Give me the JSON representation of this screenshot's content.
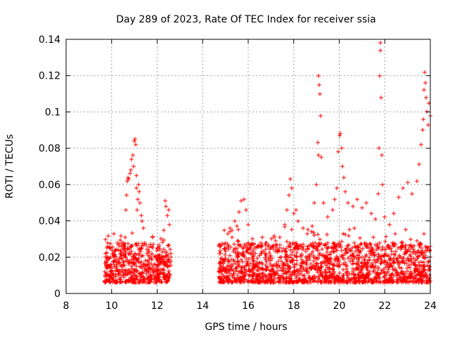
{
  "chart_data": {
    "type": "scatter",
    "title": "Day 289 of 2023, Rate Of TEC Index for receiver ssia",
    "xlabel": "GPS time / hours",
    "ylabel": "ROTI / TECUs",
    "xlim": [
      8,
      24
    ],
    "ylim": [
      0,
      0.14
    ],
    "x_ticks": [
      "8",
      "10",
      "12",
      "14",
      "16",
      "18",
      "20",
      "22",
      "24"
    ],
    "y_ticks": [
      "0",
      "0.02",
      "0.04",
      "0.06",
      "0.08",
      "0.1",
      "0.12",
      "0.14"
    ],
    "grid": true,
    "marker": "+",
    "marker_color": "#ff0000",
    "series": [
      {
        "name": "ROTI",
        "points": [
          [
            9.7,
            0.012
          ],
          [
            9.75,
            0.018
          ],
          [
            9.8,
            0.025
          ],
          [
            9.85,
            0.015
          ],
          [
            9.9,
            0.01
          ],
          [
            9.95,
            0.02
          ],
          [
            10.0,
            0.014
          ],
          [
            10.05,
            0.022
          ],
          [
            10.1,
            0.016
          ],
          [
            10.15,
            0.011
          ],
          [
            10.2,
            0.019
          ],
          [
            10.25,
            0.013
          ],
          [
            10.3,
            0.024
          ],
          [
            10.35,
            0.017
          ],
          [
            10.4,
            0.012
          ],
          [
            10.45,
            0.021
          ],
          [
            10.5,
            0.015
          ],
          [
            10.55,
            0.026
          ],
          [
            10.6,
            0.031
          ],
          [
            10.62,
            0.046
          ],
          [
            10.65,
            0.054
          ],
          [
            10.68,
            0.062
          ],
          [
            10.72,
            0.064
          ],
          [
            10.76,
            0.063
          ],
          [
            10.8,
            0.066
          ],
          [
            10.84,
            0.068
          ],
          [
            10.88,
            0.074
          ],
          [
            10.92,
            0.076
          ],
          [
            10.96,
            0.07
          ],
          [
            11.0,
            0.084
          ],
          [
            11.02,
            0.085
          ],
          [
            11.05,
            0.082
          ],
          [
            11.08,
            0.065
          ],
          [
            11.1,
            0.058
          ],
          [
            11.12,
            0.046
          ],
          [
            11.15,
            0.052
          ],
          [
            11.18,
            0.06
          ],
          [
            11.2,
            0.056
          ],
          [
            11.25,
            0.05
          ],
          [
            11.3,
            0.043
          ],
          [
            11.35,
            0.04
          ],
          [
            11.4,
            0.036
          ],
          [
            11.45,
            0.028
          ],
          [
            11.5,
            0.018
          ],
          [
            11.6,
            0.022
          ],
          [
            11.7,
            0.027
          ],
          [
            11.8,
            0.031
          ],
          [
            11.9,
            0.02
          ],
          [
            12.0,
            0.016
          ],
          [
            12.1,
            0.024
          ],
          [
            12.2,
            0.019
          ],
          [
            12.3,
            0.035
          ],
          [
            12.35,
            0.051
          ],
          [
            12.4,
            0.048
          ],
          [
            12.45,
            0.043
          ],
          [
            12.5,
            0.046
          ],
          [
            12.55,
            0.038
          ],
          [
            12.6,
            0.022
          ],
          [
            14.7,
            0.012
          ],
          [
            14.8,
            0.022
          ],
          [
            14.9,
            0.018
          ],
          [
            15.0,
            0.028
          ],
          [
            15.1,
            0.033
          ],
          [
            15.2,
            0.036
          ],
          [
            15.3,
            0.031
          ],
          [
            15.4,
            0.04
          ],
          [
            15.5,
            0.037
          ],
          [
            15.6,
            0.045
          ],
          [
            15.7,
            0.051
          ],
          [
            15.8,
            0.052
          ],
          [
            15.9,
            0.046
          ],
          [
            16.0,
            0.038
          ],
          [
            16.2,
            0.03
          ],
          [
            16.4,
            0.026
          ],
          [
            16.6,
            0.022
          ],
          [
            16.8,
            0.028
          ],
          [
            17.0,
            0.025
          ],
          [
            17.2,
            0.029
          ],
          [
            17.4,
            0.031
          ],
          [
            17.6,
            0.038
          ],
          [
            17.7,
            0.046
          ],
          [
            17.8,
            0.054
          ],
          [
            17.85,
            0.063
          ],
          [
            17.9,
            0.058
          ],
          [
            18.0,
            0.044
          ],
          [
            18.1,
            0.046
          ],
          [
            18.2,
            0.04
          ],
          [
            18.4,
            0.036
          ],
          [
            18.6,
            0.033
          ],
          [
            18.8,
            0.037
          ],
          [
            18.9,
            0.05
          ],
          [
            19.0,
            0.06
          ],
          [
            19.05,
            0.083
          ],
          [
            19.08,
            0.076
          ],
          [
            19.1,
            0.12
          ],
          [
            19.12,
            0.115
          ],
          [
            19.15,
            0.11
          ],
          [
            19.18,
            0.098
          ],
          [
            19.2,
            0.075
          ],
          [
            19.3,
            0.05
          ],
          [
            19.5,
            0.042
          ],
          [
            19.7,
            0.046
          ],
          [
            19.8,
            0.052
          ],
          [
            19.9,
            0.058
          ],
          [
            19.95,
            0.078
          ],
          [
            20.0,
            0.087
          ],
          [
            20.05,
            0.088
          ],
          [
            20.1,
            0.08
          ],
          [
            20.15,
            0.07
          ],
          [
            20.2,
            0.064
          ],
          [
            20.25,
            0.056
          ],
          [
            20.4,
            0.05
          ],
          [
            20.6,
            0.048
          ],
          [
            20.8,
            0.052
          ],
          [
            21.0,
            0.047
          ],
          [
            21.2,
            0.05
          ],
          [
            21.4,
            0.044
          ],
          [
            21.6,
            0.041
          ],
          [
            21.7,
            0.055
          ],
          [
            21.75,
            0.08
          ],
          [
            21.78,
            0.12
          ],
          [
            21.8,
            0.138
          ],
          [
            21.82,
            0.134
          ],
          [
            21.84,
            0.108
          ],
          [
            21.86,
            0.076
          ],
          [
            21.9,
            0.06
          ],
          [
            22.0,
            0.042
          ],
          [
            22.2,
            0.038
          ],
          [
            22.4,
            0.044
          ],
          [
            22.6,
            0.053
          ],
          [
            22.8,
            0.058
          ],
          [
            23.0,
            0.061
          ],
          [
            23.2,
            0.055
          ],
          [
            23.4,
            0.062
          ],
          [
            23.5,
            0.071
          ],
          [
            23.6,
            0.082
          ],
          [
            23.65,
            0.09
          ],
          [
            23.7,
            0.096
          ],
          [
            23.72,
            0.112
          ],
          [
            23.75,
            0.122
          ],
          [
            23.78,
            0.116
          ],
          [
            23.8,
            0.108
          ],
          [
            23.85,
            0.1
          ],
          [
            23.9,
            0.093
          ],
          [
            23.95,
            0.105
          ],
          [
            24.0,
            0.098
          ]
        ]
      }
    ]
  }
}
